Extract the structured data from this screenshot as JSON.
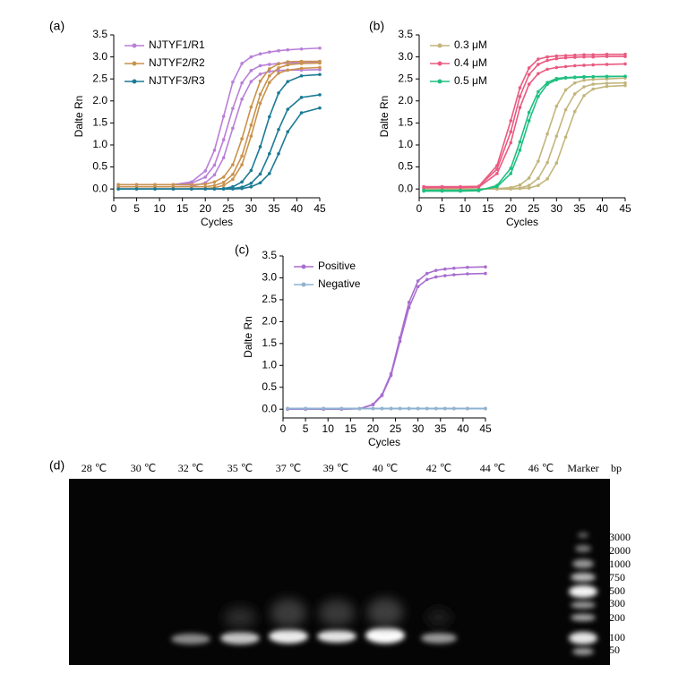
{
  "chart_data": [
    {
      "type": "line",
      "label": "(a)",
      "xlabel": "Cycles",
      "ylabel": "Dalte Rn",
      "legend": "upper left",
      "x": [
        1,
        5,
        9,
        13,
        17,
        20,
        22,
        24,
        26,
        28,
        30,
        32,
        34,
        36,
        38,
        41,
        45
      ],
      "xlim": [
        0,
        45
      ],
      "xticks": [
        0,
        5,
        10,
        15,
        20,
        25,
        30,
        35,
        40,
        45
      ],
      "ylim": [
        -0.2,
        3.5
      ],
      "yticks": [
        {
          "value": 0,
          "label": "0.0"
        },
        0.5,
        {
          "value": 1,
          "label": "1.0"
        },
        1.5,
        {
          "value": 2,
          "label": "2.0"
        },
        2.5,
        {
          "value": 3,
          "label": "3.0"
        },
        3.5
      ],
      "series": [
        {
          "name": "NJTYF1/R1",
          "color": "#b97fd8",
          "replicates": [
            [
              0.1,
              0.1,
              0.1,
              0.1,
              0.16,
              0.41,
              0.88,
              1.65,
              2.43,
              2.85,
              3.0,
              3.07,
              3.11,
              3.14,
              3.16,
              3.18,
              3.2
            ],
            [
              0.1,
              0.1,
              0.1,
              0.1,
              0.13,
              0.27,
              0.54,
              1.12,
              1.83,
              2.41,
              2.69,
              2.8,
              2.83,
              2.85,
              2.86,
              2.87,
              2.88
            ],
            [
              0.05,
              0.05,
              0.05,
              0.05,
              0.06,
              0.14,
              0.32,
              0.71,
              1.38,
              2.04,
              2.44,
              2.61,
              2.67,
              2.69,
              2.7,
              2.7,
              2.71
            ]
          ]
        },
        {
          "name": "NJTYF2/R2",
          "color": "#c9924c",
          "replicates": [
            [
              0.1,
              0.1,
              0.1,
              0.1,
              0.1,
              0.11,
              0.16,
              0.27,
              0.55,
              1.14,
              1.86,
              2.45,
              2.73,
              2.84,
              2.89,
              2.9,
              2.9
            ],
            [
              0.05,
              0.05,
              0.05,
              0.05,
              0.05,
              0.05,
              0.08,
              0.15,
              0.33,
              0.75,
              1.45,
              2.15,
              2.57,
              2.75,
              2.82,
              2.85,
              2.86
            ],
            [
              0,
              0,
              0,
              0,
              0,
              0.01,
              0.03,
              0.08,
              0.22,
              0.55,
              1.2,
              1.95,
              2.42,
              2.63,
              2.7,
              2.74,
              2.76
            ]
          ]
        },
        {
          "name": "NJTYF3/R3",
          "color": "#1c7a95",
          "replicates": [
            [
              0,
              0,
              0,
              0,
              0,
              0,
              0,
              0.01,
              0.05,
              0.16,
              0.42,
              0.96,
              1.64,
              2.18,
              2.44,
              2.57,
              2.6
            ],
            [
              0,
              0,
              0,
              0,
              0,
              0,
              0,
              0,
              0.01,
              0.04,
              0.13,
              0.34,
              0.8,
              1.35,
              1.81,
              2.08,
              2.14
            ],
            [
              0,
              0,
              0,
              0,
              0,
              0,
              0,
              0,
              0,
              0.01,
              0.05,
              0.14,
              0.35,
              0.8,
              1.3,
              1.73,
              1.84
            ]
          ]
        }
      ]
    },
    {
      "type": "line",
      "label": "(b)",
      "xlabel": "Cycles",
      "ylabel": "Dalte Rn",
      "legend": "upper left",
      "x": [
        1,
        5,
        9,
        13,
        17,
        20,
        22,
        24,
        26,
        28,
        30,
        32,
        34,
        36,
        38,
        41,
        45
      ],
      "xlim": [
        0,
        45
      ],
      "xticks": [
        0,
        5,
        10,
        15,
        20,
        25,
        30,
        35,
        40,
        45
      ],
      "ylim": [
        -0.2,
        3.5
      ],
      "yticks": [
        {
          "value": 0,
          "label": "0.0"
        },
        0.5,
        {
          "value": 1,
          "label": "1.0"
        },
        1.5,
        {
          "value": 2,
          "label": "2.0"
        },
        2.5,
        {
          "value": 3,
          "label": "3.0"
        },
        3.5
      ],
      "series": [
        {
          "name": "0.3 μM",
          "color": "#c2b57c",
          "replicates": [
            [
              0,
              0,
              0,
              0,
              0.01,
              0.03,
              0.09,
              0.25,
              0.63,
              1.25,
              1.88,
              2.25,
              2.41,
              2.47,
              2.49,
              2.5,
              2.52
            ],
            [
              0,
              0,
              0,
              0,
              0,
              0.01,
              0.02,
              0.08,
              0.24,
              0.6,
              1.2,
              1.8,
              2.16,
              2.32,
              2.38,
              2.4,
              2.41
            ],
            [
              0,
              0,
              0,
              0,
              0,
              0,
              0.01,
              0.02,
              0.08,
              0.23,
              0.59,
              1.18,
              1.76,
              2.12,
              2.27,
              2.33,
              2.35
            ]
          ]
        },
        {
          "name": "0.4 μM",
          "color": "#ea5a80",
          "replicates": [
            [
              0.05,
              0.05,
              0.05,
              0.06,
              0.53,
              1.55,
              2.3,
              2.75,
              2.95,
              3.0,
              3.02,
              3.03,
              3.04,
              3.05,
              3.05,
              3.06,
              3.06
            ],
            [
              0.05,
              0.05,
              0.05,
              0.06,
              0.45,
              1.3,
              2.1,
              2.6,
              2.83,
              2.92,
              2.96,
              2.98,
              2.99,
              3.0,
              3.0,
              3.01,
              3.01
            ],
            [
              0.03,
              0.03,
              0.03,
              0.04,
              0.35,
              1.05,
              1.85,
              2.38,
              2.62,
              2.72,
              2.76,
              2.78,
              2.8,
              2.81,
              2.82,
              2.83,
              2.84
            ]
          ]
        },
        {
          "name": "0.5 μM",
          "color": "#1fbf80",
          "replicates": [
            [
              -0.05,
              -0.05,
              -0.05,
              -0.04,
              0.08,
              0.47,
              1.07,
              1.74,
              2.21,
              2.42,
              2.51,
              2.53,
              2.54,
              2.55,
              2.55,
              2.56,
              2.56
            ],
            [
              -0.03,
              -0.03,
              -0.03,
              -0.02,
              0.05,
              0.35,
              0.88,
              1.55,
              2.1,
              2.38,
              2.48,
              2.52,
              2.53,
              2.54,
              2.55,
              2.55,
              2.56
            ]
          ]
        }
      ]
    },
    {
      "type": "line",
      "label": "(c)",
      "xlabel": "Cycles",
      "ylabel": "Dalte Rn",
      "legend": "upper left",
      "x": [
        1,
        5,
        9,
        13,
        17,
        20,
        22,
        24,
        26,
        28,
        30,
        32,
        34,
        36,
        38,
        41,
        45
      ],
      "xlim": [
        0,
        45
      ],
      "xticks": [
        0,
        5,
        10,
        15,
        20,
        25,
        30,
        35,
        40,
        45
      ],
      "ylim": [
        -0.2,
        3.5
      ],
      "yticks": [
        {
          "value": 0,
          "label": "0.0"
        },
        0.5,
        {
          "value": 1,
          "label": "1.0"
        },
        1.5,
        {
          "value": 2,
          "label": "2.0"
        },
        2.5,
        {
          "value": 3,
          "label": "3.0"
        },
        3.5
      ],
      "series": [
        {
          "name": "Positive",
          "color": "#a86dd0",
          "replicates": [
            [
              0,
              0,
              0,
              0,
              0.01,
              0.11,
              0.33,
              0.81,
              1.63,
              2.44,
              2.93,
              3.1,
              3.17,
              3.2,
              3.22,
              3.24,
              3.25
            ],
            [
              0,
              0,
              0,
              0,
              0.01,
              0.1,
              0.31,
              0.77,
              1.55,
              2.32,
              2.8,
              2.96,
              3.02,
              3.05,
              3.07,
              3.09,
              3.1
            ]
          ]
        },
        {
          "name": "Negative",
          "color": "#8fb2d0",
          "replicates": [
            [
              0.02,
              0.02,
              0.02,
              0.02,
              0.02,
              0.02,
              0.02,
              0.02,
              0.02,
              0.02,
              0.02,
              0.02,
              0.02,
              0.02,
              0.02,
              0.02,
              0.02
            ],
            [
              0.01,
              0.01,
              0.01,
              0.01,
              0.01,
              0.01,
              0.01,
              0.01,
              0.01,
              0.01,
              0.01,
              0.01,
              0.01,
              0.01,
              0.01,
              0.01,
              0.01
            ]
          ]
        }
      ]
    }
  ],
  "gel": {
    "label": "(d)",
    "lanes": [
      "28 ℃",
      "30 ℃",
      "32 ℃",
      "35 ℃",
      "37 ℃",
      "39 ℃",
      "40 ℃",
      "42 ℃",
      "44 ℃",
      "46 ℃",
      "Marker"
    ],
    "unit": "bp",
    "marker_sizes": [
      3000,
      2000,
      1000,
      750,
      500,
      300,
      200,
      100,
      50
    ]
  }
}
